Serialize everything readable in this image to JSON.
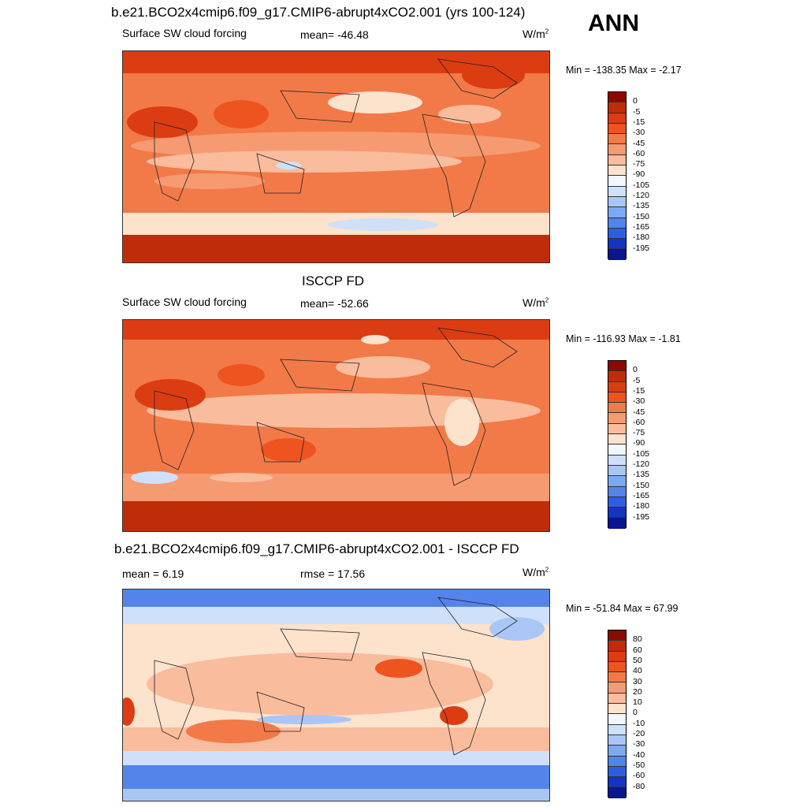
{
  "season": "ANN",
  "units_base": "W/m",
  "units_exp": "2",
  "panels": [
    {
      "title": "b.e21.BCO2x4cmip6.f09_g17.CMIP6-abrupt4xCO2.001 (yrs 100-124)",
      "left": "Surface SW cloud forcing",
      "center": "mean= -46.48",
      "minmax": "Min = -138.35 Max =  -2.17"
    },
    {
      "title": "ISCCP FD",
      "left": "Surface SW cloud forcing",
      "center": "mean= -52.66",
      "minmax": "Min = -116.93 Max =  -1.81"
    },
    {
      "title": "b.e21.BCO2x4cmip6.f09_g17.CMIP6-abrupt4xCO2.001 - ISCCP FD",
      "left": "mean =   6.19",
      "center": "rmse =  17.56",
      "minmax": "Min = -51.84 Max =  67.99"
    }
  ],
  "chart_data": [
    {
      "type": "heatmap",
      "title": "b.e21.BCO2x4cmip6.f09_g17.CMIP6-abrupt4xCO2.001 (yrs 100-124)",
      "variable": "Surface SW cloud forcing",
      "mean": -46.48,
      "min": -138.35,
      "max": -2.17,
      "units": "W/m2",
      "colorbar_levels": [
        "0",
        "-5",
        "-15",
        "-30",
        "-45",
        "-60",
        "-75",
        "-90",
        "-105",
        "-120",
        "-135",
        "-150",
        "-165",
        "-180",
        "-195"
      ],
      "colorbar_colors": [
        "#8b0a00",
        "#bf2c0a",
        "#dc3c12",
        "#ee5420",
        "#f27a48",
        "#f69a72",
        "#f9bc9c",
        "#fde2cc",
        "#f2f6ff",
        "#cfe0fb",
        "#a9c6f6",
        "#7ea8f0",
        "#5484ea",
        "#2e5ee0",
        "#1534c4",
        "#0a1590"
      ]
    },
    {
      "type": "heatmap",
      "title": "ISCCP FD",
      "variable": "Surface SW cloud forcing",
      "mean": -52.66,
      "min": -116.93,
      "max": -1.81,
      "units": "W/m2",
      "colorbar_levels": [
        "0",
        "-5",
        "-15",
        "-30",
        "-45",
        "-60",
        "-75",
        "-90",
        "-105",
        "-120",
        "-135",
        "-150",
        "-165",
        "-180",
        "-195"
      ],
      "colorbar_colors": [
        "#8b0a00",
        "#bf2c0a",
        "#dc3c12",
        "#ee5420",
        "#f27a48",
        "#f69a72",
        "#f9bc9c",
        "#fde2cc",
        "#f2f6ff",
        "#cfe0fb",
        "#a9c6f6",
        "#7ea8f0",
        "#5484ea",
        "#2e5ee0",
        "#1534c4",
        "#0a1590"
      ]
    },
    {
      "type": "heatmap",
      "title": "b.e21.BCO2x4cmip6.f09_g17.CMIP6-abrupt4xCO2.001 - ISCCP FD",
      "mean": 6.19,
      "rmse": 17.56,
      "min": -51.84,
      "max": 67.99,
      "units": "W/m2",
      "colorbar_levels": [
        "80",
        "60",
        "50",
        "40",
        "30",
        "20",
        "10",
        "0",
        "-10",
        "-20",
        "-30",
        "-40",
        "-50",
        "-60",
        "-80"
      ],
      "colorbar_colors": [
        "#8b0a00",
        "#bf2c0a",
        "#dc3c12",
        "#ee5420",
        "#f27a48",
        "#f69a72",
        "#f9bc9c",
        "#fde2cc",
        "#f2f6ff",
        "#cfe0fb",
        "#a9c6f6",
        "#7ea8f0",
        "#5484ea",
        "#2e5ee0",
        "#1534c4",
        "#0a1590"
      ]
    }
  ]
}
